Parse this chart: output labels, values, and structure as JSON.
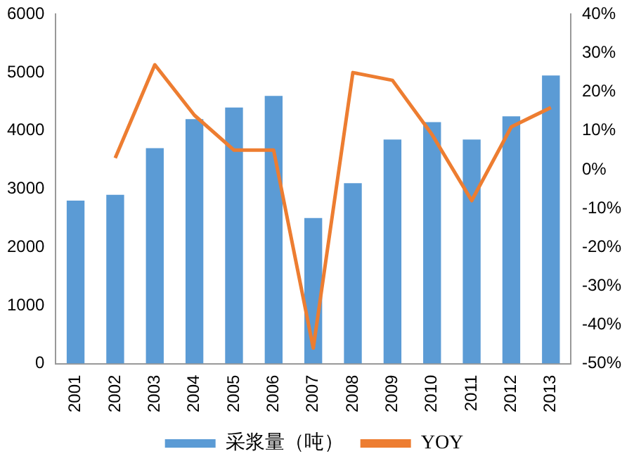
{
  "chart_data": {
    "type": "bar",
    "categories": [
      "2001",
      "2002",
      "2003",
      "2004",
      "2005",
      "2006",
      "2007",
      "2008",
      "2009",
      "2010",
      "2011",
      "2012",
      "2013"
    ],
    "series": [
      {
        "name": "采浆量（吨）",
        "color": "#5b9bd5",
        "values": [
          2800,
          2900,
          3700,
          4200,
          4400,
          4600,
          2500,
          3100,
          3850,
          4150,
          3850,
          4250,
          4950
        ]
      },
      {
        "name": "YOY",
        "type": "line",
        "axis": "y2",
        "color": "#ed7d31",
        "values": [
          null,
          3,
          27,
          14,
          5,
          5,
          -46,
          25,
          23,
          9,
          -8,
          11,
          16
        ]
      }
    ],
    "ylim": [
      0,
      6000
    ],
    "yticks": [
      0,
      1000,
      2000,
      3000,
      4000,
      5000,
      6000
    ],
    "y2lim": [
      -50,
      40
    ],
    "y2ticks": [
      {
        "value": -50,
        "label": "-50%"
      },
      {
        "value": -40,
        "label": "-40%"
      },
      {
        "value": -30,
        "label": "-30%"
      },
      {
        "value": -20,
        "label": "-20%"
      },
      {
        "value": -10,
        "label": "-10%"
      },
      {
        "value": 0,
        "label": "0%"
      },
      {
        "value": 10,
        "label": "10%"
      },
      {
        "value": 20,
        "label": "20%"
      },
      {
        "value": 30,
        "label": "30%"
      },
      {
        "value": 40,
        "label": "40%"
      }
    ],
    "grid": false,
    "legend": "bottom",
    "marker": "none"
  }
}
